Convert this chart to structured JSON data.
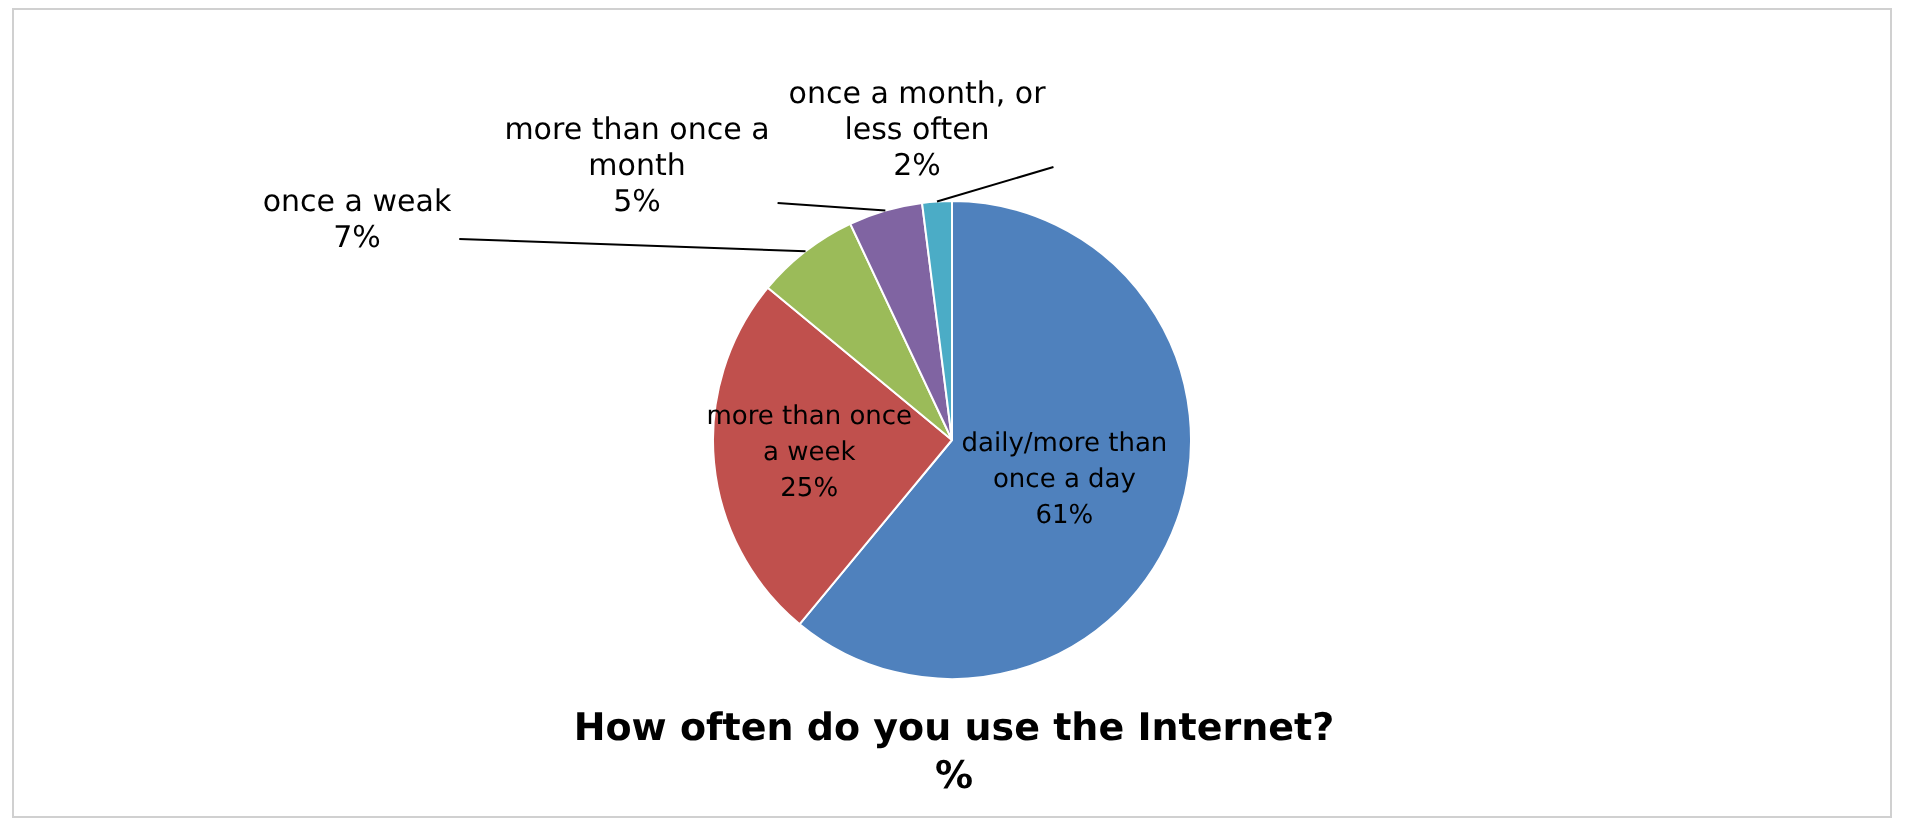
{
  "chart_data": {
    "type": "pie",
    "title": "How often do you use the Internet?",
    "subtitle": "%",
    "categories": [
      "daily/more than once a day",
      "more than once a week",
      "once a weak",
      "more than once a month",
      "once a month, or less often"
    ],
    "values": [
      61,
      25,
      7,
      5,
      2
    ],
    "colors": [
      "#4f81bd",
      "#c0504d",
      "#9bbb59",
      "#8064a2",
      "#4bacc6"
    ],
    "value_labels": [
      "61%",
      "25%",
      "7%",
      "5%",
      "2%"
    ]
  }
}
